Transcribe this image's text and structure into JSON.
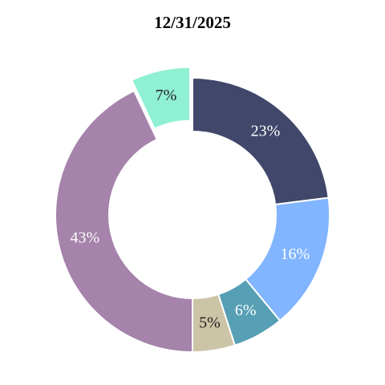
{
  "chart_data": {
    "type": "donut",
    "title": "12/31/2025",
    "values": [
      23,
      16,
      6,
      5,
      43,
      7
    ],
    "value_labels": [
      "23%",
      "16%",
      "6%",
      "5%",
      "43%",
      "7%"
    ],
    "colors": [
      "#40476b",
      "#82b5ff",
      "#569fb4",
      "#ccc4a6",
      "#a583ab",
      "#8ff0d3"
    ],
    "explode": [
      0,
      0,
      0,
      0,
      0,
      0.08
    ]
  }
}
